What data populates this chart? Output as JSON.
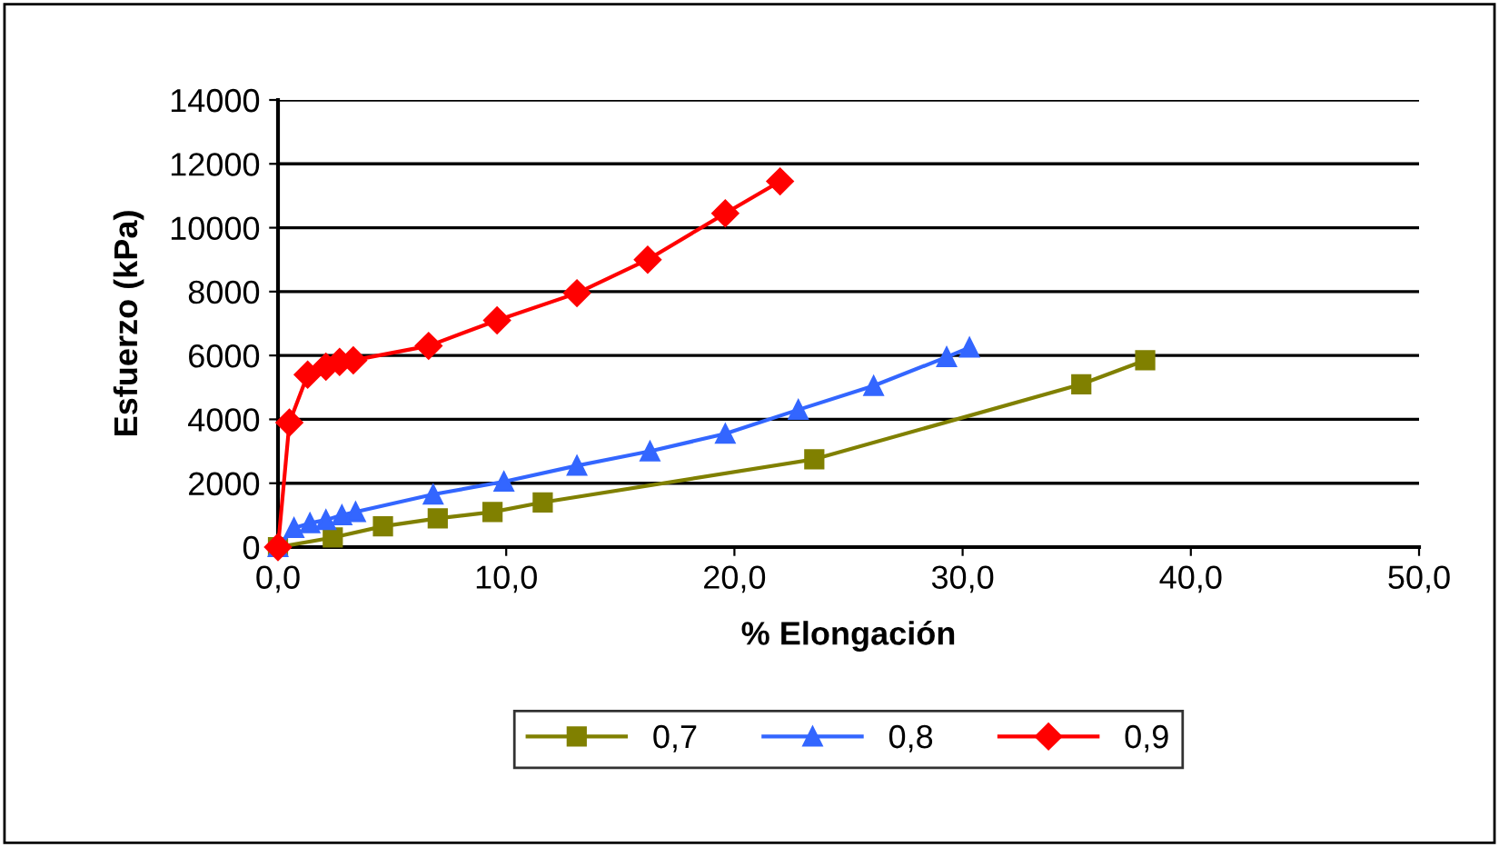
{
  "chart_data": {
    "type": "line",
    "xlabel": "% Elongación",
    "ylabel": "Esfuerzo (kPa)",
    "xlim": [
      0,
      50
    ],
    "xticks": [
      {
        "value": 0,
        "label": "0,0"
      },
      {
        "value": 10,
        "label": "10,0"
      },
      {
        "value": 20,
        "label": "20,0"
      },
      {
        "value": 30,
        "label": "30,0"
      },
      {
        "value": 40,
        "label": "40,0"
      },
      {
        "value": 50,
        "label": "50,0"
      }
    ],
    "ylim": [
      0,
      14000
    ],
    "yticks": [
      0,
      2000,
      4000,
      6000,
      8000,
      10000,
      12000,
      14000
    ],
    "grid": "y",
    "legend": "bottom",
    "series": [
      {
        "name": "0,7",
        "color": "#808000",
        "marker": "square",
        "x": [
          0,
          2.4,
          4.6,
          7,
          9.4,
          11.6,
          23.5,
          35.2,
          38
        ],
        "values": [
          0,
          300,
          650,
          900,
          1100,
          1400,
          2750,
          5100,
          5850
        ]
      },
      {
        "name": "0,8",
        "color": "#3366ff",
        "marker": "triangle",
        "x": [
          0,
          0.7,
          1.4,
          2.1,
          2.8,
          3.4,
          6.8,
          9.9,
          13.1,
          16.3,
          19.6,
          22.8,
          26.1,
          29.3,
          30.3
        ],
        "values": [
          0,
          600,
          750,
          850,
          1000,
          1100,
          1650,
          2050,
          2550,
          3000,
          3550,
          4300,
          5050,
          5950,
          6250
        ]
      },
      {
        "name": "0,9",
        "color": "#ff0000",
        "marker": "diamond",
        "x": [
          0,
          0.5,
          1.3,
          2.1,
          2.7,
          3.3,
          6.6,
          9.6,
          13.1,
          16.2,
          19.6,
          22
        ],
        "values": [
          0,
          3900,
          5400,
          5650,
          5800,
          5850,
          6300,
          7100,
          7950,
          9000,
          10450,
          11450
        ]
      }
    ]
  }
}
